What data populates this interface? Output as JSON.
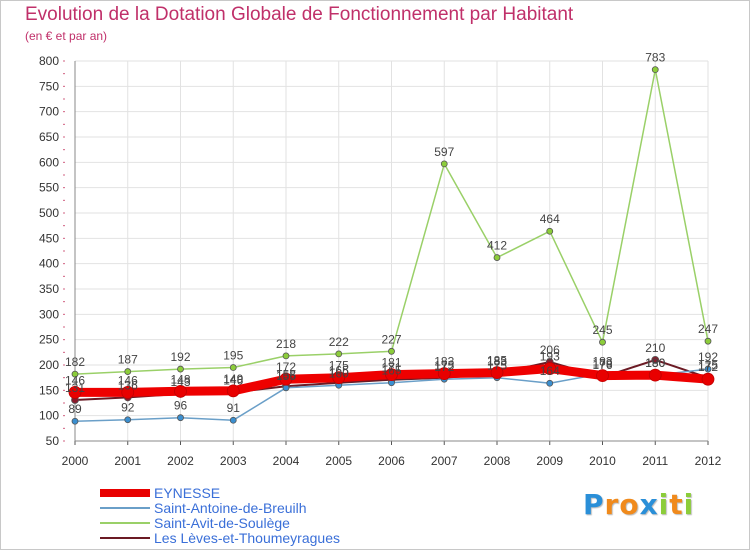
{
  "header": {
    "title": "Evolution de la Dotation Globale de Fonctionnement par Habitant",
    "subtitle": "(en € et par an)"
  },
  "chart_data": {
    "type": "line",
    "x": [
      "2000",
      "2001",
      "2002",
      "2003",
      "2004",
      "2005",
      "2006",
      "2007",
      "2008",
      "2009",
      "2010",
      "2011",
      "2012"
    ],
    "ylim": [
      50,
      800
    ],
    "yticks": [
      50,
      100,
      150,
      200,
      250,
      300,
      350,
      400,
      450,
      500,
      550,
      600,
      650,
      700,
      750,
      800
    ],
    "grid": true,
    "legend_position": "bottom-left",
    "series": [
      {
        "name": "Les Lèves-et-Thoumeyragues",
        "color": "#8b1a2b",
        "line_color": "#6b1a24",
        "values": [
          131,
          136,
          143,
          146,
          158,
          165,
          171,
          175,
          183,
          206,
          176,
          210,
          175
        ]
      },
      {
        "name": "Saint-Antoine-de-Breuilh",
        "color": "#3a8fd0",
        "line_color": "#6a9fc8",
        "values": [
          89,
          92,
          96,
          91,
          155,
          160,
          165,
          172,
          175,
          164,
          183,
          180,
          192
        ]
      },
      {
        "name": "Saint-Avit-de-Soulège",
        "color": "#8ccd3a",
        "line_color": "#9ad068",
        "values": [
          182,
          187,
          192,
          195,
          218,
          222,
          227,
          597,
          412,
          464,
          245,
          783,
          247
        ]
      },
      {
        "name": "EYNESSE",
        "color": "#e80000",
        "line_color": "#ee0000",
        "values": [
          146,
          146,
          148,
          149,
          172,
          175,
          181,
          183,
          185,
          193,
          179,
          180,
          172
        ]
      }
    ],
    "data_labels": [
      [
        "131",
        "136",
        "143",
        "146",
        "158",
        "165",
        "171",
        "175",
        "183",
        "206",
        "176",
        "210",
        "175"
      ],
      [
        "89",
        "92",
        "96",
        "91",
        "155",
        "160",
        "165",
        "172",
        "175",
        "164",
        "183",
        "180",
        "192"
      ],
      [
        "182",
        "187",
        "192",
        "195",
        "218",
        "222",
        "227",
        "597",
        "412",
        "464",
        "245",
        "783",
        "247"
      ],
      [
        "146",
        "146",
        "148",
        "149",
        "172",
        "175",
        "181",
        "183",
        "185",
        "193",
        "179",
        "180",
        "172"
      ]
    ]
  },
  "legend": {
    "items": [
      {
        "label": "EYNESSE",
        "color": "#e80000"
      },
      {
        "label": "Saint-Antoine-de-Breuilh",
        "color": "#6a9fc8"
      },
      {
        "label": "Saint-Avit-de-Soulège",
        "color": "#9ad068"
      },
      {
        "label": "Les Lèves-et-Thoumeyragues",
        "color": "#6b1a24"
      }
    ]
  },
  "logo": {
    "letters": [
      "P",
      "r",
      "o",
      "x",
      "i",
      "t",
      "i"
    ],
    "colors": [
      "#2a8fd8",
      "#f08a1c",
      "#f08a1c",
      "#2a8fd8",
      "#8ccd3a",
      "#f08a1c",
      "#8ccd3a"
    ]
  }
}
